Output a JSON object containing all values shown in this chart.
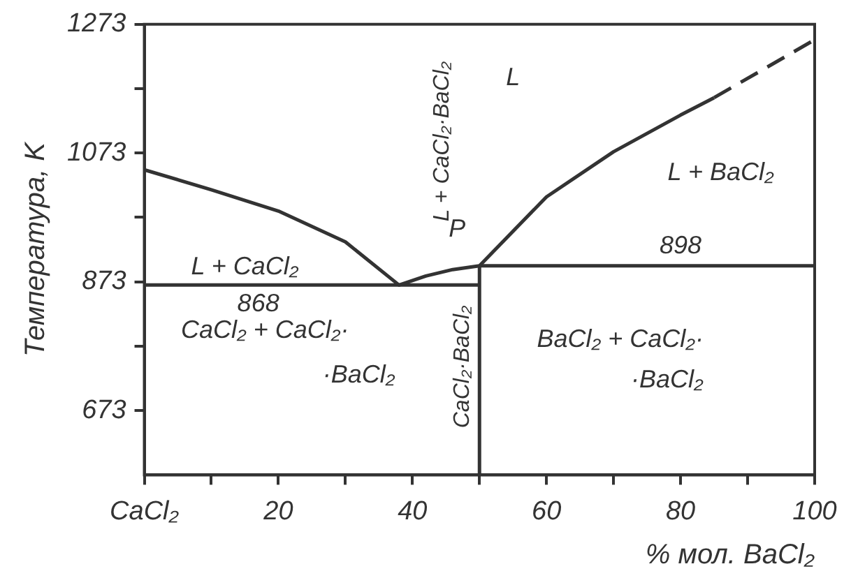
{
  "chart_data": {
    "type": "line",
    "ylabel": "Температура, K",
    "xlabel": "% мол. BaCl₂",
    "xlim": [
      0,
      100
    ],
    "xticks": [
      {
        "value": 0,
        "label": "CaCl₂"
      },
      {
        "value": 10,
        "label": null
      },
      20,
      {
        "value": 30,
        "label": null
      },
      40,
      {
        "value": 50,
        "label": null
      },
      60,
      {
        "value": 70,
        "label": null
      },
      80,
      {
        "value": 90,
        "label": null
      },
      100
    ],
    "ylim": [
      573,
      1273
    ],
    "yticks": [
      673,
      {
        "value": 773,
        "label": null
      },
      873,
      {
        "value": 973,
        "label": null
      },
      1073,
      {
        "value": 1173,
        "label": null
      },
      1273
    ],
    "grid": false,
    "legend": false,
    "marker": "none",
    "series": [
      {
        "color": "#333333",
        "line_style": "solid",
        "x": [
          0,
          10,
          20,
          30,
          38,
          42,
          46,
          50,
          60,
          70,
          80,
          85
        ],
        "values": [
          1047,
          1016,
          983,
          935,
          868,
          882,
          892,
          898,
          1005,
          1075,
          1132,
          1159
        ]
      },
      {
        "color": "#333333",
        "line_style": "dashed",
        "x": [
          85,
          100
        ],
        "values": [
          1159,
          1249
        ]
      },
      {
        "color": "#333333",
        "line_style": "solid",
        "x": [
          0,
          50
        ],
        "values": [
          868,
          868
        ]
      },
      {
        "color": "#333333",
        "line_style": "solid",
        "x": [
          50,
          100
        ],
        "values": [
          898,
          898
        ]
      },
      {
        "color": "#333333",
        "line_style": "solid",
        "x": [
          50,
          50
        ],
        "values": [
          573,
          898
        ]
      }
    ],
    "annotations": [
      "L",
      "L + CaCl₂·BaCl₂",
      {
        "text": "P",
        "x": 50,
        "y": 898
      },
      "L + BaCl₂",
      {
        "text": "898",
        "x": 80,
        "y": 898
      },
      "L + CaCl₂",
      {
        "text": "868",
        "x": 17,
        "y": 868
      },
      "CaCl₂ + CaCl₂·",
      "·BaCl₂",
      "CaCl₂·BaCl₂",
      "BaCl₂ + CaCl₂·",
      "·BaCl₂"
    ]
  }
}
